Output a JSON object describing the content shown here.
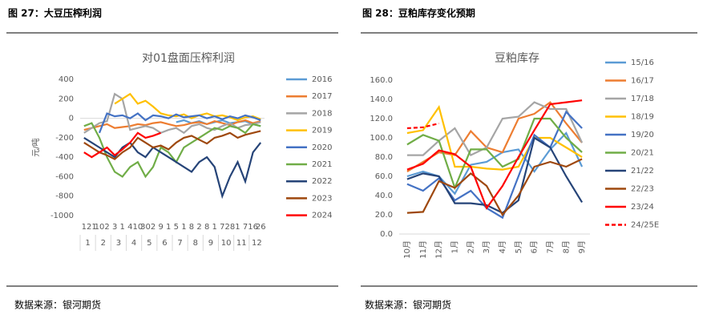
{
  "figures": [
    {
      "caption": "图 27：大豆压榨利润",
      "source": "数据来源：银河期货"
    },
    {
      "caption": "图 28：豆粕库存变化预期",
      "source": "数据来源：银河期货"
    }
  ],
  "chart_data": [
    {
      "type": "line",
      "title": "对01盘面压榨利润",
      "y_label": "元/吨",
      "categories": [
        "1",
        "21",
        "10",
        "2",
        "3",
        "1",
        "4",
        "10",
        "30",
        "2",
        "9",
        "1",
        "5",
        "1",
        "8",
        "2",
        "8",
        "1",
        "7",
        "28",
        "1",
        "7",
        "16",
        "26"
      ],
      "month_labels": [
        "1",
        "2",
        "3",
        "4",
        "5",
        "6",
        "7",
        "8",
        "9",
        "10",
        "11",
        "12"
      ],
      "ylim": [
        -1000,
        400
      ],
      "yticks": [
        -1000,
        -800,
        -600,
        -400,
        -200,
        0,
        200,
        400
      ],
      "series": [
        {
          "name": "2016",
          "color": "#5b9bd5",
          "values": [
            null,
            null,
            null,
            null,
            null,
            null,
            null,
            null,
            null,
            null,
            null,
            null,
            -40,
            -20,
            -50,
            -30,
            -60,
            -40,
            -20,
            -50,
            -40,
            -30,
            -60,
            -80
          ]
        },
        {
          "name": "2017",
          "color": "#ed7d31",
          "values": [
            -120,
            -100,
            -80,
            -60,
            -100,
            -90,
            -80,
            -60,
            -70,
            -50,
            -40,
            -60,
            -80,
            -70,
            -50,
            -40,
            -60,
            -30,
            -50,
            -70,
            -40,
            -20,
            -50,
            -30
          ]
        },
        {
          "name": "2018",
          "color": "#a5a5a5",
          "values": [
            -150,
            -100,
            -50,
            -30,
            250,
            200,
            -120,
            -100,
            -80,
            -100,
            -150,
            -120,
            -100,
            -150,
            -80,
            -60,
            -100,
            -120,
            -80,
            -50,
            -100,
            -70,
            -60,
            -40
          ]
        },
        {
          "name": "2019",
          "color": "#ffc000",
          "values": [
            null,
            null,
            null,
            null,
            150,
            200,
            250,
            150,
            180,
            120,
            50,
            30,
            20,
            40,
            0,
            30,
            50,
            20,
            30,
            10,
            -20,
            10,
            20,
            -10
          ]
        },
        {
          "name": "2020",
          "color": "#4472c4",
          "values": [
            null,
            null,
            -150,
            50,
            20,
            30,
            0,
            50,
            -20,
            30,
            20,
            0,
            40,
            10,
            20,
            30,
            0,
            20,
            -10,
            20,
            0,
            30,
            10,
            -20
          ]
        },
        {
          "name": "2021",
          "color": "#70ad47",
          "values": [
            -80,
            -50,
            -200,
            -400,
            -550,
            -600,
            -500,
            -450,
            -600,
            -500,
            -300,
            -350,
            -450,
            -300,
            -250,
            -200,
            -150,
            -100,
            -120,
            -80,
            -100,
            -150,
            -60,
            -80
          ]
        },
        {
          "name": "2022",
          "color": "#264478",
          "values": [
            -200,
            -250,
            -300,
            -350,
            -400,
            -300,
            -250,
            -350,
            -400,
            -300,
            -350,
            -400,
            -450,
            -500,
            -550,
            -450,
            -400,
            -500,
            -800,
            -600,
            -450,
            -650,
            -350,
            -250
          ]
        },
        {
          "name": "2023",
          "color": "#9e480e",
          "values": [
            -250,
            -300,
            -350,
            -380,
            -420,
            -350,
            -300,
            -200,
            -250,
            -300,
            -280,
            -320,
            -250,
            -200,
            -180,
            -220,
            -260,
            -200,
            -180,
            -150,
            -200,
            -170,
            -150,
            -130
          ]
        },
        {
          "name": "2024",
          "color": "#ff0000",
          "values": [
            -350,
            -400,
            -350,
            -300,
            -380,
            -320,
            -250,
            -150,
            -200,
            -180,
            -150,
            null,
            null,
            null,
            null,
            null,
            null,
            null,
            null,
            null,
            null,
            null,
            null,
            null
          ]
        }
      ]
    },
    {
      "type": "line",
      "title": "豆粕库存",
      "categories": [
        "10月",
        "11月",
        "12月",
        "1月",
        "2月",
        "3月",
        "4月",
        "5月",
        "6月",
        "7月",
        "8月",
        "9月"
      ],
      "ylim": [
        0,
        160
      ],
      "yticks": [
        {
          "value": 0,
          "label": "0.0"
        },
        {
          "value": 20,
          "label": "20.0"
        },
        {
          "value": 40,
          "label": "40.0"
        },
        {
          "value": 60,
          "label": "60.0"
        },
        {
          "value": 80,
          "label": "80.0"
        },
        {
          "value": 100,
          "label": "100.0"
        },
        {
          "value": 120,
          "label": "120.0"
        },
        {
          "value": 140,
          "label": "140.0"
        },
        {
          "value": 160,
          "label": "160.0"
        }
      ],
      "series": [
        {
          "name": "15/16",
          "color": "#5b9bd5",
          "values": [
            60,
            65,
            60,
            42,
            72,
            75,
            85,
            88,
            65,
            88,
            105,
            70
          ]
        },
        {
          "name": "16/17",
          "color": "#ed7d31",
          "values": [
            65,
            75,
            85,
            82,
            107,
            90,
            85,
            120,
            125,
            137,
            115,
            95
          ]
        },
        {
          "name": "17/18",
          "color": "#a5a5a5",
          "values": [
            82,
            82,
            97,
            110,
            82,
            90,
            120,
            122,
            137,
            130,
            130,
            95
          ]
        },
        {
          "name": "18/19",
          "color": "#ffc000",
          "values": [
            105,
            108,
            132,
            70,
            70,
            68,
            67,
            70,
            100,
            100,
            90,
            80
          ]
        },
        {
          "name": "19/20",
          "color": "#4472c4",
          "values": [
            52,
            45,
            58,
            35,
            45,
            27,
            17,
            60,
            103,
            90,
            127,
            110
          ]
        },
        {
          "name": "20/21",
          "color": "#70ad47",
          "values": [
            93,
            103,
            97,
            48,
            88,
            88,
            70,
            78,
            120,
            120,
            100,
            85
          ]
        },
        {
          "name": "21/22",
          "color": "#264478",
          "values": [
            57,
            63,
            60,
            32,
            32,
            30,
            22,
            35,
            100,
            90,
            60,
            33
          ]
        },
        {
          "name": "22/23",
          "color": "#9e480e",
          "values": [
            22,
            23,
            55,
            48,
            63,
            50,
            20,
            40,
            70,
            75,
            70,
            78
          ]
        },
        {
          "name": "23/24",
          "color": "#ff0000",
          "values": [
            67,
            73,
            87,
            83,
            70,
            27,
            50,
            80,
            108,
            135,
            137,
            139
          ]
        },
        {
          "name": "24/25E",
          "color": "#ff0000",
          "dash": true,
          "values": [
            110,
            111,
            115,
            null,
            null,
            null,
            null,
            null,
            null,
            null,
            null,
            null
          ]
        }
      ]
    }
  ]
}
